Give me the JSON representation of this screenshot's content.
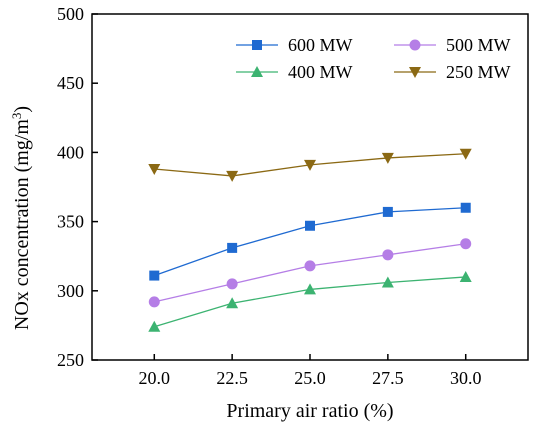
{
  "chart_data": {
    "type": "line",
    "xlabel": "Primary air ratio (%)",
    "ylabel": "NOx concentration (mg/m",
    "ylabel_sup": "3",
    "ylabel_close": ")",
    "x": [
      20.0,
      22.5,
      25.0,
      27.5,
      30.0
    ],
    "x_tick_labels": [
      "20.0",
      "22.5",
      "25.0",
      "27.5",
      "30.0"
    ],
    "xlim": [
      18.0,
      32.0
    ],
    "ylim": [
      250,
      500
    ],
    "y_ticks": [
      250,
      300,
      350,
      400,
      450,
      500
    ],
    "y_tick_labels": [
      "250",
      "300",
      "350",
      "400",
      "450",
      "500"
    ],
    "grid": false,
    "legend_position": "top-right",
    "series": [
      {
        "name": "600 MW",
        "color": "#1f6ad1",
        "marker": "square",
        "values": [
          311,
          331,
          347,
          357,
          360
        ]
      },
      {
        "name": "500 MW",
        "color": "#b57ee6",
        "marker": "circle",
        "values": [
          292,
          305,
          318,
          326,
          334
        ]
      },
      {
        "name": "400 MW",
        "color": "#3cb371",
        "marker": "triangle-up",
        "values": [
          274,
          291,
          301,
          306,
          310
        ]
      },
      {
        "name": "250 MW",
        "color": "#8b6914",
        "marker": "triangle-down",
        "values": [
          388,
          383,
          391,
          396,
          399
        ]
      }
    ]
  }
}
